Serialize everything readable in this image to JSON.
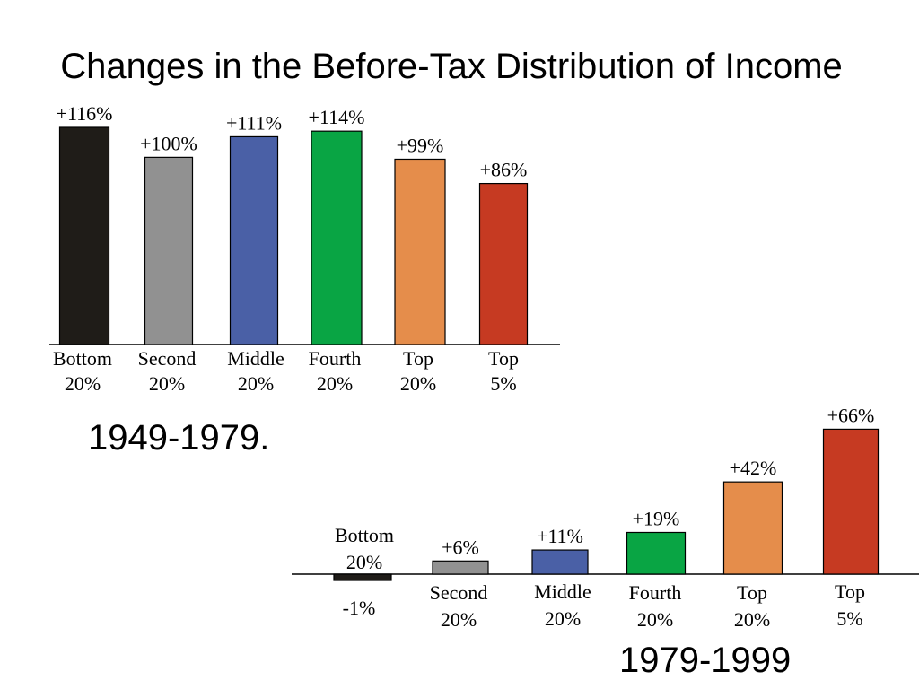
{
  "title": "Changes in the Before-Tax Distribution of Income",
  "chart_data": [
    {
      "type": "bar",
      "period_label": "1949-1979.",
      "categories": [
        [
          "Bottom",
          "20%"
        ],
        [
          "Second",
          "20%"
        ],
        [
          "Middle",
          "20%"
        ],
        [
          "Fourth",
          "20%"
        ],
        [
          "Top",
          "20%"
        ],
        [
          "Top",
          "5%"
        ]
      ],
      "values": [
        116,
        100,
        111,
        114,
        99,
        86
      ],
      "value_labels": [
        "+116%",
        "+100%",
        "+111%",
        "+114%",
        "+99%",
        "+86%"
      ],
      "colors": [
        "#1f1c18",
        "#919191",
        "#4a60a6",
        "#09a544",
        "#e58d4b",
        "#c63a22"
      ],
      "ylim": [
        0,
        120
      ]
    },
    {
      "type": "bar",
      "period_label": "1979-1999",
      "categories": [
        [
          "Bottom",
          "20%"
        ],
        [
          "Second",
          "20%"
        ],
        [
          "Middle",
          "20%"
        ],
        [
          "Fourth",
          "20%"
        ],
        [
          "Top",
          "20%"
        ],
        [
          "Top",
          "5%"
        ]
      ],
      "values": [
        -1,
        6,
        11,
        19,
        42,
        66
      ],
      "value_labels": [
        "-1%",
        "+6%",
        "+11%",
        "+19%",
        "+42%",
        "+66%"
      ],
      "colors": [
        "#1f1c18",
        "#919191",
        "#4a60a6",
        "#09a544",
        "#e58d4b",
        "#c63a22"
      ],
      "ylim": [
        -5,
        70
      ]
    }
  ]
}
